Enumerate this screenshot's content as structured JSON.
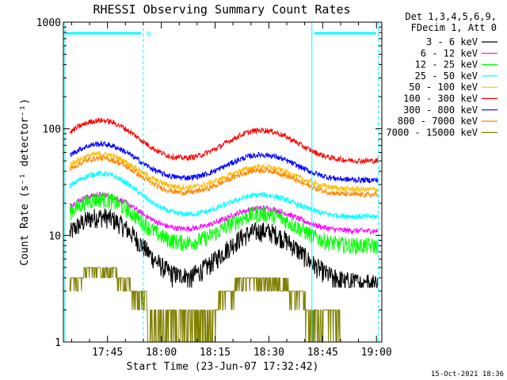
{
  "chart_data": {
    "type": "line",
    "title": "RHESSI Observing Summary Count Rates",
    "xlabel": "Start Time (23-Jun-07 17:32:42)",
    "ylabel": "Count Rate (s⁻¹ detector⁻¹)",
    "y_scale": "log",
    "ylim": [
      1,
      1000
    ],
    "xlim_minutes_after_17_00": [
      38,
      107
    ],
    "x_tick_labels": [
      "17:45",
      "18:00",
      "18:15",
      "18:30",
      "18:45",
      "19:00"
    ],
    "x_tick_minutes_after_17_00": [
      45,
      60,
      75,
      90,
      105,
      120
    ],
    "y_tick_labels": [
      "1",
      "10",
      "100",
      "1000"
    ],
    "y_tick_values": [
      1,
      10,
      100,
      1000
    ],
    "legend": {
      "placement": "top-right",
      "header": [
        "Det 1,3,4,5,6,9,",
        "FDecim 1, Att 0"
      ]
    },
    "annotations": {
      "night_marker_label": "N",
      "night_intervals_minutes_after_17_00": [
        [
          32.7,
          55
        ],
        [
          102,
          120.5
        ]
      ],
      "footer_date": "15-Oct-2021 18:36"
    },
    "series": [
      {
        "name": "3 - 6 keV",
        "color": "#000000",
        "base": 3.6,
        "peaks": [
          15,
          11
        ]
      },
      {
        "name": "6 - 12 keV",
        "color": "#ff00ff",
        "base": 11,
        "peaks": [
          24,
          18
        ]
      },
      {
        "name": "12 - 25 keV",
        "color": "#00ff00",
        "base": 8,
        "peaks": [
          22,
          16
        ]
      },
      {
        "name": "25 - 50 keV",
        "color": "#00ffff",
        "base": 15,
        "peaks": [
          38,
          24
        ]
      },
      {
        "name": "50 - 100 keV",
        "color": "#ffbb00",
        "base": 27,
        "peaks": [
          58,
          44
        ]
      },
      {
        "name": "100 - 300 keV",
        "color": "#ff0000",
        "base": 50,
        "peaks": [
          120,
          97
        ]
      },
      {
        "name": "300 - 800 keV",
        "color": "#0000ff",
        "base": 33,
        "peaks": [
          72,
          57
        ]
      },
      {
        "name": "800 - 7000 keV",
        "color": "#ff8800",
        "base": 24,
        "peaks": [
          53,
          41
        ]
      },
      {
        "name": "7000 - 15000 keV",
        "color": "#808000",
        "base": 1.4,
        "peaks": [
          5,
          4.5
        ]
      }
    ],
    "peak_times_minutes_after_17_00": [
      43,
      88
    ]
  }
}
